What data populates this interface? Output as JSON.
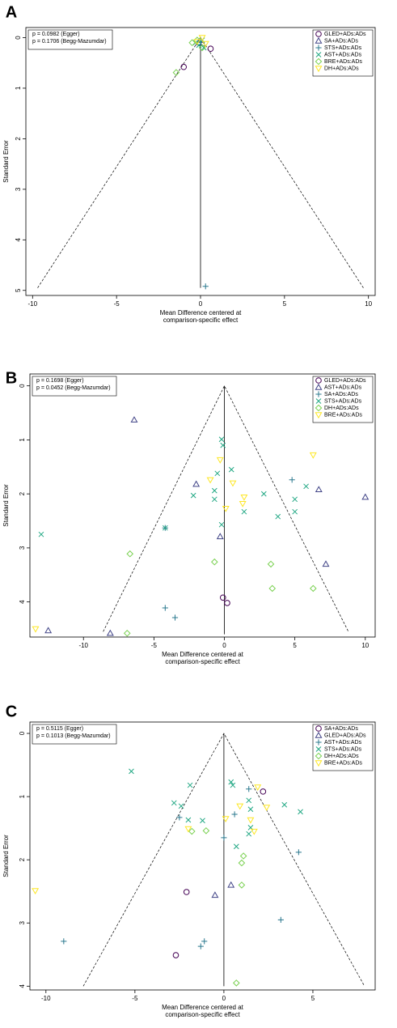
{
  "chart_data": [
    {
      "type": "scatter",
      "panel_label": "A",
      "annotations": [
        "p = 0.0982 (Egger)",
        "p = 0.1706 (Begg-Mazumdar)"
      ],
      "xlabel": [
        "Mean Difference centered at",
        "comparison-specific effect"
      ],
      "ylabel": "Standard Error",
      "xlim": [
        -10.4,
        10.4
      ],
      "ylim": [
        -0.2,
        5.1
      ],
      "y_reversed": true,
      "xticks": [
        -10,
        -5,
        0,
        5,
        10
      ],
      "yticks": [
        0,
        1,
        2,
        3,
        4,
        5
      ],
      "funnel": {
        "x": [
          -9.7,
          0,
          9.7
        ],
        "y": [
          4.95,
          0,
          4.95
        ]
      },
      "reference_line_x": 0,
      "reference_line_y": [
        0,
        4.95
      ],
      "legend": "top-right",
      "series": [
        {
          "name": "GLED+ADs:ADs",
          "color": "#440154",
          "marker": "circle",
          "x": [
            -1.0,
            0.6
          ],
          "y": [
            0.58,
            0.22
          ]
        },
        {
          "name": "SA+ADs:ADs",
          "color": "#414487",
          "marker": "triangle",
          "x": [
            0.0,
            -0.1,
            0.1
          ],
          "y": [
            0.05,
            0.1,
            0.12
          ]
        },
        {
          "name": "STS+ADs:ADs",
          "color": "#2A788E",
          "marker": "plus",
          "x": [
            0.3,
            0.0
          ],
          "y": [
            4.92,
            0.08
          ]
        },
        {
          "name": "AST+ADs:ADs",
          "color": "#22A884",
          "marker": "x",
          "x": [
            -0.3,
            0.1,
            -0.1,
            0.2
          ],
          "y": [
            0.1,
            0.05,
            0.15,
            0.2
          ]
        },
        {
          "name": "BRE+ADs:ADs",
          "color": "#7AD151",
          "marker": "diamond",
          "x": [
            -1.45,
            -0.5,
            0.1,
            -0.2
          ],
          "y": [
            0.69,
            0.1,
            0.2,
            0.05
          ]
        },
        {
          "name": "DH+ADs:ADs",
          "color": "#FDE725",
          "marker": "triangle-down",
          "x": [
            0.1,
            -0.2,
            0.3
          ],
          "y": [
            0.0,
            0.08,
            0.12
          ]
        }
      ]
    },
    {
      "type": "scatter",
      "panel_label": "B",
      "annotations": [
        "p = 0.1698 (Egger)",
        "p = 0.0452 (Begg-Mazumdar)"
      ],
      "xlabel": [
        "Mean Difference centered at",
        "comparison-specific effect"
      ],
      "ylabel": "Standard Error",
      "xlim": [
        -13.8,
        10.7
      ],
      "ylim": [
        -0.22,
        4.65
      ],
      "y_reversed": true,
      "xticks": [
        -10,
        -5,
        0,
        5,
        10
      ],
      "yticks": [
        0,
        1,
        2,
        3,
        4
      ],
      "funnel": {
        "x": [
          -8.6,
          0,
          8.8
        ],
        "y": [
          4.55,
          0,
          4.55
        ]
      },
      "reference_line_x": 0,
      "reference_line_y": [
        0,
        4.6
      ],
      "legend": "top-right",
      "series": [
        {
          "name": "GLED+ADs:ADs",
          "color": "#440154",
          "marker": "circle",
          "x": [
            -0.1,
            0.2
          ],
          "y": [
            3.92,
            4.02
          ]
        },
        {
          "name": "AST+ADs:ADs",
          "color": "#414487",
          "marker": "triangle",
          "x": [
            -6.4,
            -2.0,
            -0.3,
            6.7,
            10.0,
            7.2,
            -12.5,
            -8.1
          ],
          "y": [
            0.63,
            1.82,
            2.79,
            1.92,
            2.06,
            3.3,
            4.53,
            4.58
          ]
        },
        {
          "name": "SA+ADs:ADs",
          "color": "#2A788E",
          "marker": "plus",
          "x": [
            4.8,
            -4.2,
            -4.2,
            -3.5
          ],
          "y": [
            1.74,
            2.63,
            4.11,
            4.29
          ]
        },
        {
          "name": "STS+ADs:ADs",
          "color": "#22A884",
          "marker": "x",
          "x": [
            -13.0,
            -0.2,
            -0.1,
            0.5,
            -0.5,
            -0.7,
            -2.2,
            -0.7,
            1.4,
            2.8,
            3.8,
            -0.2,
            5.8,
            5.0,
            5.0,
            -4.2
          ],
          "y": [
            2.75,
            0.99,
            1.1,
            1.55,
            1.62,
            1.94,
            2.03,
            2.1,
            2.33,
            2.0,
            2.42,
            2.57,
            1.86,
            2.1,
            2.33,
            2.63
          ]
        },
        {
          "name": "DH+ADs:ADs",
          "color": "#7AD151",
          "marker": "diamond",
          "x": [
            -6.7,
            -0.7,
            3.3,
            3.4,
            6.3,
            -6.9
          ],
          "y": [
            3.11,
            3.26,
            3.3,
            3.75,
            3.75,
            4.58
          ]
        },
        {
          "name": "BRE+ADs:ADs",
          "color": "#FDE725",
          "marker": "triangle-down",
          "x": [
            6.3,
            -0.3,
            -1.0,
            0.6,
            1.3,
            1.4,
            0.1,
            -13.4
          ],
          "y": [
            1.28,
            1.37,
            1.74,
            1.8,
            2.18,
            2.06,
            2.27,
            4.5
          ]
        }
      ]
    },
    {
      "type": "scatter",
      "panel_label": "C",
      "annotations": [
        "p = 0.5115 (Egger)",
        "p = 0.1013 (Begg-Mazumdar)"
      ],
      "xlabel": [
        "Mean Difference centered at",
        "comparison-specific effect"
      ],
      "ylabel": "Standard Error",
      "xlim": [
        -10.9,
        8.5
      ],
      "ylim": [
        -0.18,
        4.06
      ],
      "y_reversed": true,
      "xticks": [
        -10,
        -5,
        0,
        5
      ],
      "yticks": [
        0,
        1,
        2,
        3,
        4
      ],
      "funnel": {
        "x": [
          -7.9,
          0,
          7.9
        ],
        "y": [
          4.0,
          0,
          4.0
        ]
      },
      "reference_line_x": 0,
      "reference_line_y": [
        0,
        4.0
      ],
      "legend": "top-right",
      "series": [
        {
          "name": "SA+ADs:ADs",
          "color": "#440154",
          "marker": "circle",
          "x": [
            2.2,
            -2.1,
            -2.7
          ],
          "y": [
            0.92,
            2.51,
            3.51
          ]
        },
        {
          "name": "GLED+ADs:ADs",
          "color": "#414487",
          "marker": "triangle",
          "x": [
            -0.5,
            0.4
          ],
          "y": [
            2.56,
            2.4
          ]
        },
        {
          "name": "AST+ADs:ADs",
          "color": "#2A788E",
          "marker": "plus",
          "x": [
            1.4,
            -2.5,
            0.6,
            0.0,
            4.2,
            3.2,
            -9.0,
            -1.1,
            -1.3
          ],
          "y": [
            0.88,
            1.33,
            1.28,
            1.65,
            1.88,
            2.95,
            3.29,
            3.29,
            3.37
          ]
        },
        {
          "name": "STS+ADs:ADs",
          "color": "#22A884",
          "marker": "x",
          "x": [
            -5.2,
            0.4,
            0.5,
            -1.9,
            -2.8,
            -2.4,
            -2.0,
            -1.2,
            1.4,
            1.5,
            3.4,
            4.3,
            1.5,
            1.4,
            0.7
          ],
          "y": [
            0.6,
            0.77,
            0.82,
            0.82,
            1.1,
            1.15,
            1.37,
            1.38,
            1.06,
            1.2,
            1.13,
            1.24,
            1.49,
            1.59,
            1.79
          ]
        },
        {
          "name": "DH+ADs:ADs",
          "color": "#7AD151",
          "marker": "diamond",
          "x": [
            -1.8,
            -1.0,
            1.1,
            1.0,
            1.0,
            0.7
          ],
          "y": [
            1.55,
            1.54,
            1.94,
            2.05,
            2.4,
            3.95
          ]
        },
        {
          "name": "BRE+ADs:ADs",
          "color": "#FDE725",
          "marker": "triangle-down",
          "x": [
            1.9,
            2.4,
            0.9,
            0.1,
            1.5,
            1.7,
            -2.0,
            -10.6
          ],
          "y": [
            0.85,
            1.17,
            1.15,
            1.35,
            1.37,
            1.55,
            1.51,
            2.49
          ]
        }
      ]
    }
  ]
}
